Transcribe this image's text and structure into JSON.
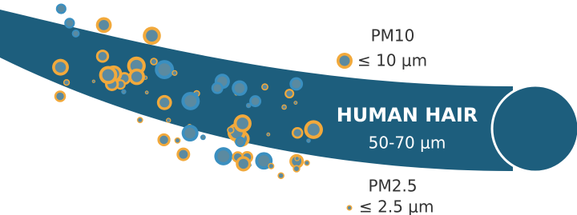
{
  "pm10": {
    "label": "PM10",
    "size": "≤ 10 μm"
  },
  "hair": {
    "label": "HUMAN HAIR",
    "size": "50-70 μm"
  },
  "pm25": {
    "label": "PM2.5",
    "size": "≤ 2.5 μm"
  }
}
